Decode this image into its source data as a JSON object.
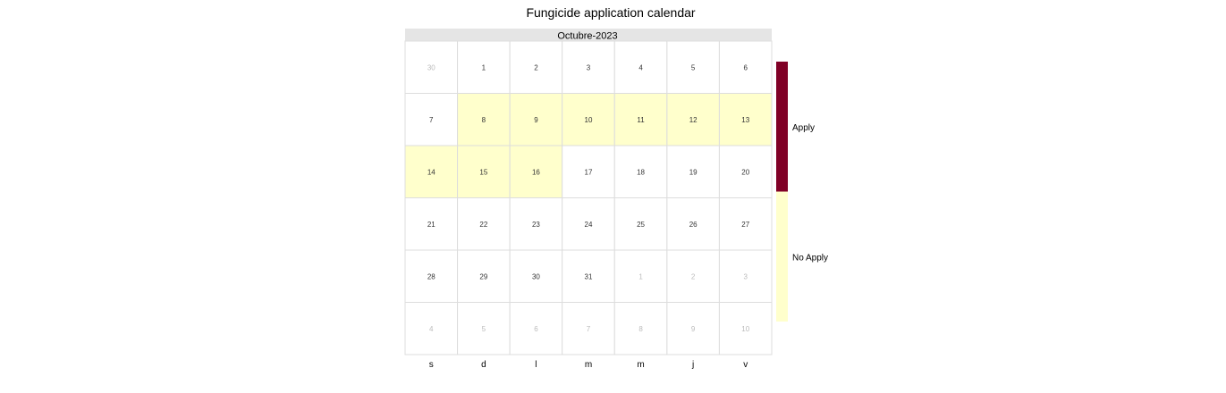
{
  "chart_data": {
    "type": "heatmap",
    "title": "Fungicide application calendar",
    "month_label": "Octubre-2023",
    "weekday_labels": [
      "s",
      "d",
      "l",
      "m",
      "m",
      "j",
      "v"
    ],
    "weeks": [
      [
        30,
        1,
        2,
        3,
        4,
        5,
        6
      ],
      [
        7,
        8,
        9,
        10,
        11,
        12,
        13
      ],
      [
        14,
        15,
        16,
        17,
        18,
        19,
        20
      ],
      [
        21,
        22,
        23,
        24,
        25,
        26,
        27
      ],
      [
        28,
        29,
        30,
        31,
        1,
        2,
        3
      ],
      [
        4,
        5,
        6,
        7,
        8,
        9,
        10
      ]
    ],
    "in_month": [
      [
        false,
        true,
        true,
        true,
        true,
        true,
        true
      ],
      [
        true,
        true,
        true,
        true,
        true,
        true,
        true
      ],
      [
        true,
        true,
        true,
        true,
        true,
        true,
        true
      ],
      [
        true,
        true,
        true,
        true,
        true,
        true,
        true
      ],
      [
        true,
        true,
        true,
        true,
        false,
        false,
        false
      ],
      [
        false,
        false,
        false,
        false,
        false,
        false,
        false
      ]
    ],
    "status": [
      [
        "",
        "",
        "",
        "",
        "",
        "",
        ""
      ],
      [
        "",
        "No Apply",
        "No Apply",
        "No Apply",
        "No Apply",
        "No Apply",
        "No Apply"
      ],
      [
        "No Apply",
        "No Apply",
        "No Apply",
        "",
        "",
        "",
        ""
      ],
      [
        "",
        "",
        "",
        "",
        "",
        "",
        ""
      ],
      [
        "",
        "",
        "",
        "",
        "",
        "",
        ""
      ],
      [
        "",
        "",
        "",
        "",
        "",
        "",
        ""
      ]
    ],
    "legend": [
      {
        "label": "Apply",
        "color": "#800026"
      },
      {
        "label": "No Apply",
        "color": "#FFFFCC"
      }
    ],
    "legend_position": "right",
    "colors": {
      "header_bg": "#E5E5E5",
      "grid_line": "#DDDDDD",
      "empty_cell": "#FFFFFF",
      "in_month_text": "#333333",
      "out_month_text": "#BBBBBB"
    }
  }
}
